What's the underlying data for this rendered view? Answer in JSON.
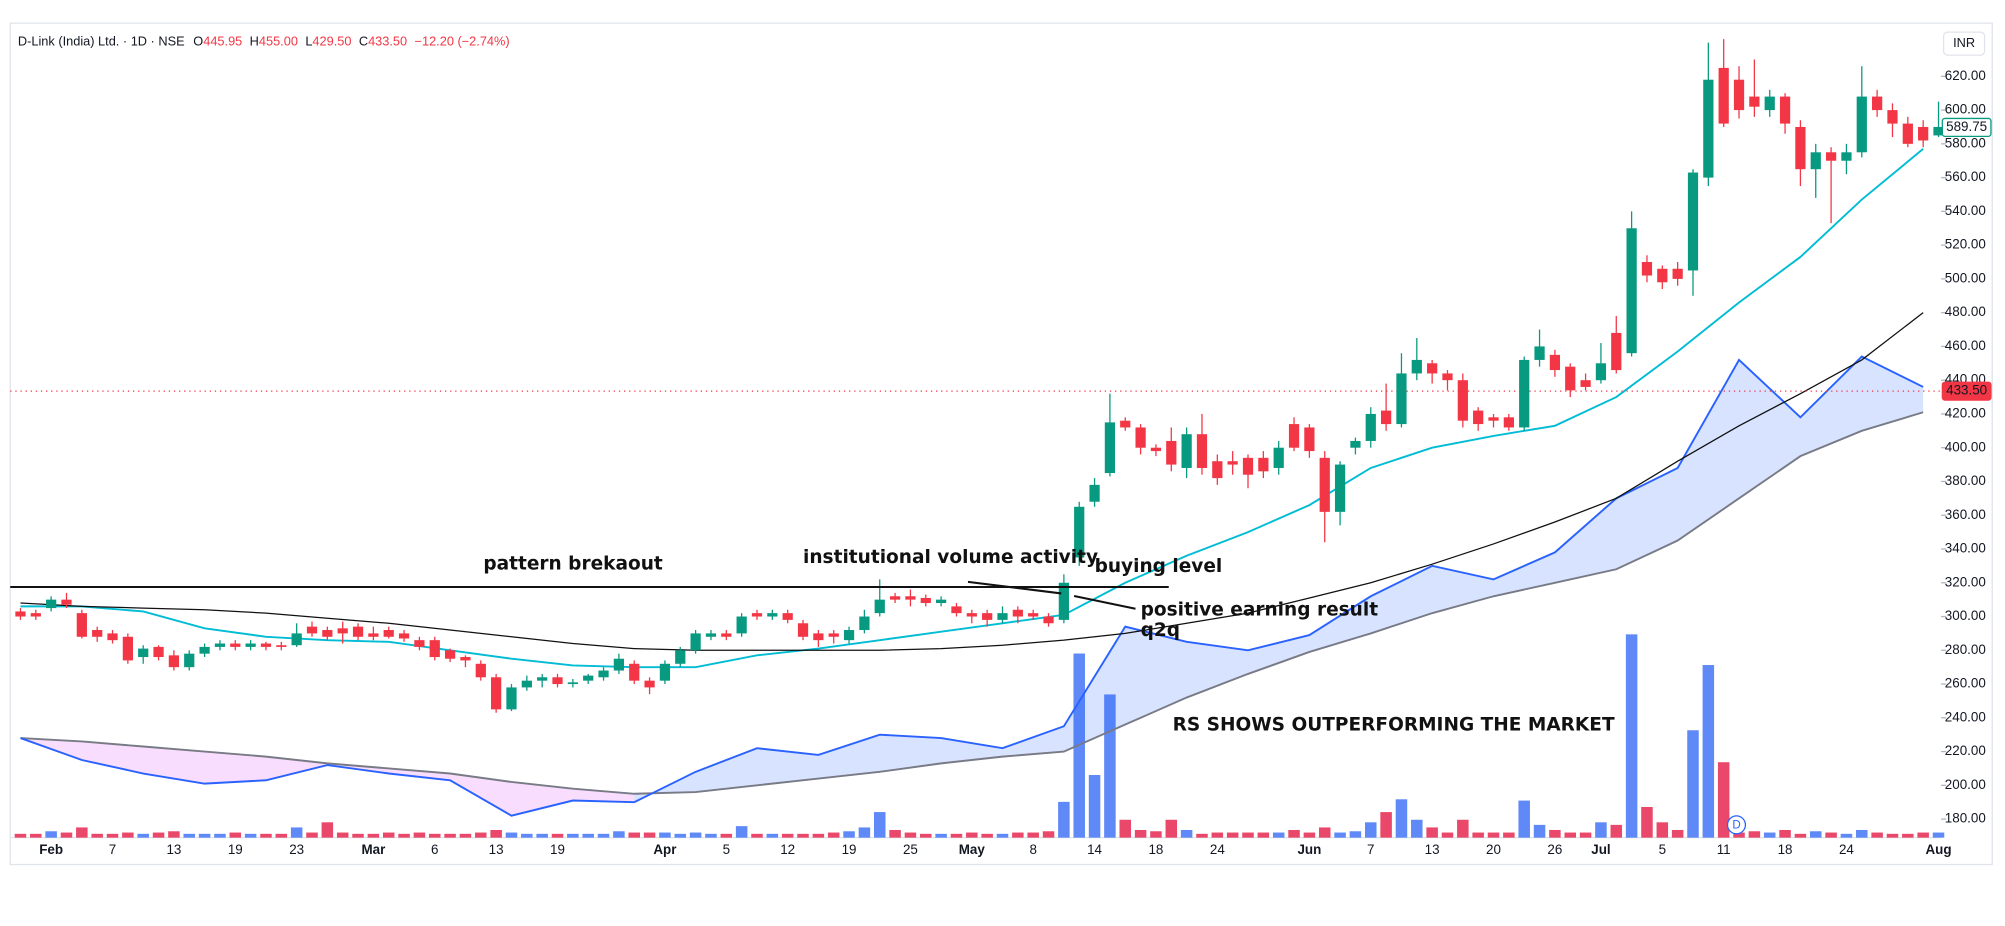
{
  "chart_data": {
    "type": "candlestick",
    "title": "D-Link (India) Ltd. · 1D · NSE",
    "ohlc_legend": [
      {
        "label": "O",
        "value": "445.95"
      },
      {
        "label": "H",
        "value": "455.00"
      },
      {
        "label": "L",
        "value": "429.50"
      },
      {
        "label": "C",
        "value": "433.50"
      }
    ],
    "change": "−12.20 (−2.74%)",
    "currency": "INR",
    "up_color": "#089981",
    "down_color": "#f23645",
    "volume_up_color": "#4d7cf5",
    "volume_down_color": "#e8345a",
    "categories": [
      null,
      null,
      "Feb",
      null,
      null,
      null,
      "7",
      null,
      null,
      null,
      "13",
      null,
      null,
      null,
      "19",
      null,
      null,
      null,
      "23",
      null,
      null,
      null,
      null,
      "Mar",
      null,
      null,
      null,
      "6",
      null,
      null,
      null,
      "13",
      null,
      null,
      null,
      "19",
      null,
      null,
      null,
      null,
      null,
      null,
      "Apr",
      null,
      null,
      null,
      "5",
      null,
      null,
      null,
      "12",
      null,
      null,
      null,
      "19",
      null,
      null,
      null,
      "25",
      null,
      null,
      null,
      "May",
      null,
      null,
      null,
      "8",
      null,
      null,
      null,
      "14",
      null,
      null,
      null,
      "18",
      null,
      null,
      null,
      "24",
      null,
      null,
      null,
      null,
      null,
      "Jun",
      null,
      null,
      null,
      "7",
      null,
      null,
      null,
      "13",
      null,
      null,
      null,
      "20",
      null,
      null,
      null,
      "26",
      null,
      null,
      "Jul",
      null,
      null,
      null,
      "5",
      null,
      null,
      null,
      "11",
      null,
      null,
      null,
      "18",
      null,
      null,
      null,
      "24",
      null,
      null,
      null,
      null,
      null,
      "Aug"
    ],
    "open": [
      303,
      302,
      305,
      310,
      302,
      292,
      290,
      288,
      276,
      282,
      277,
      270,
      278,
      282,
      284,
      282,
      284,
      283,
      283,
      294,
      292,
      293,
      294,
      290,
      292,
      290,
      286,
      286,
      280,
      276,
      272,
      264,
      245,
      258,
      262,
      264,
      260,
      262,
      264,
      268,
      272,
      262,
      262,
      272,
      280,
      288,
      290,
      290,
      302,
      300,
      302,
      296,
      290,
      290,
      286,
      292,
      302,
      312,
      312,
      311,
      308,
      306,
      302,
      302,
      298,
      304,
      302,
      300,
      298,
      335,
      368,
      385,
      416,
      412,
      400,
      404,
      388,
      408,
      392,
      392,
      394,
      394,
      388,
      414,
      412,
      394,
      362,
      400,
      404,
      422,
      414,
      444,
      450,
      444,
      440,
      422,
      418,
      418,
      412,
      452,
      455,
      448,
      440,
      440,
      468,
      456,
      510,
      506,
      506,
      505,
      560,
      625,
      618,
      608,
      600,
      608,
      590,
      565,
      575,
      570,
      575,
      608,
      600,
      592,
      590,
      585
    ],
    "high": [
      305,
      304,
      312,
      314,
      304,
      294,
      292,
      290,
      283,
      283,
      280,
      280,
      284,
      286,
      286,
      286,
      285,
      285,
      296,
      297,
      294,
      297,
      296,
      294,
      294,
      292,
      288,
      288,
      281,
      277,
      274,
      266,
      260,
      265,
      266,
      266,
      263,
      266,
      270,
      278,
      274,
      264,
      274,
      282,
      292,
      292,
      292,
      302,
      304,
      304,
      304,
      298,
      292,
      292,
      294,
      304,
      322,
      314,
      316,
      313,
      312,
      308,
      304,
      304,
      306,
      306,
      304,
      302,
      325,
      368,
      382,
      432,
      418,
      414,
      402,
      412,
      412,
      420,
      396,
      398,
      396,
      398,
      404,
      418,
      414,
      398,
      392,
      406,
      424,
      438,
      456,
      465,
      452,
      446,
      444,
      424,
      420,
      420,
      454,
      470,
      458,
      450,
      444,
      462,
      478,
      540,
      514,
      508,
      510,
      565,
      640,
      642,
      626,
      630,
      612,
      610,
      594,
      580,
      578,
      580,
      626,
      612,
      604,
      596,
      594,
      605
    ],
    "low": [
      298,
      298,
      303,
      305,
      287,
      285,
      284,
      272,
      272,
      274,
      268,
      268,
      276,
      280,
      280,
      280,
      280,
      280,
      282,
      288,
      286,
      284,
      286,
      286,
      287,
      285,
      280,
      274,
      273,
      270,
      262,
      243,
      244,
      256,
      258,
      258,
      258,
      260,
      262,
      266,
      260,
      254,
      260,
      270,
      278,
      286,
      286,
      288,
      298,
      298,
      296,
      286,
      282,
      284,
      284,
      290,
      300,
      308,
      306,
      306,
      306,
      300,
      296,
      294,
      296,
      296,
      298,
      294,
      296,
      330,
      365,
      383,
      410,
      396,
      395,
      386,
      382,
      384,
      378,
      384,
      376,
      382,
      384,
      398,
      394,
      344,
      354,
      396,
      400,
      410,
      412,
      440,
      438,
      434,
      412,
      410,
      412,
      410,
      410,
      448,
      442,
      430,
      434,
      438,
      444,
      454,
      498,
      494,
      496,
      490,
      555,
      590,
      595,
      596,
      596,
      586,
      555,
      548,
      533,
      562,
      572,
      596,
      584,
      578,
      578,
      584
    ],
    "close": [
      300,
      300,
      310,
      307,
      288,
      288,
      286,
      274,
      281,
      276,
      270,
      278,
      282,
      284,
      282,
      284,
      282,
      282,
      290,
      290,
      288,
      290,
      288,
      288,
      288,
      287,
      282,
      276,
      275,
      274,
      264,
      245,
      258,
      262,
      264,
      260,
      261,
      265,
      268,
      275,
      262,
      258,
      272,
      280,
      290,
      290,
      288,
      300,
      300,
      302,
      298,
      288,
      286,
      288,
      292,
      300,
      310,
      310,
      310,
      308,
      310,
      302,
      300,
      298,
      302,
      300,
      300,
      296,
      320,
      365,
      378,
      415,
      412,
      400,
      398,
      390,
      408,
      388,
      382,
      390,
      384,
      386,
      400,
      400,
      398,
      362,
      390,
      404,
      420,
      414,
      444,
      452,
      444,
      440,
      416,
      414,
      416,
      412,
      452,
      460,
      446,
      434,
      436,
      450,
      446,
      530,
      502,
      498,
      500,
      563,
      618,
      592,
      600,
      602,
      608,
      592,
      565,
      575,
      570,
      575,
      608,
      600,
      592,
      580,
      582,
      590
    ],
    "volume": [
      3,
      3,
      5,
      4,
      8,
      3,
      3,
      4,
      3,
      4,
      5,
      3,
      3,
      3,
      4,
      3,
      3,
      3,
      8,
      4,
      12,
      4,
      3,
      3,
      4,
      3,
      4,
      3,
      3,
      3,
      4,
      6,
      4,
      3,
      3,
      3,
      3,
      3,
      3,
      5,
      4,
      4,
      4,
      3,
      4,
      3,
      3,
      9,
      3,
      3,
      3,
      3,
      3,
      4,
      5,
      8,
      20,
      6,
      4,
      3,
      3,
      3,
      4,
      3,
      3,
      4,
      4,
      5,
      28,
      144,
      49,
      112,
      14,
      6,
      5,
      14,
      6,
      3,
      4,
      4,
      4,
      4,
      4,
      6,
      4,
      8,
      4,
      5,
      12,
      20,
      30,
      14,
      8,
      4,
      14,
      4,
      4,
      4,
      29,
      10,
      6,
      4,
      4,
      12,
      10,
      159,
      24,
      12,
      6,
      84,
      135,
      59,
      4,
      5,
      4,
      6,
      3,
      5,
      4,
      3,
      6,
      4,
      3,
      3,
      4,
      4
    ],
    "vlim": [
      0,
      170
    ],
    "ylim": [
      169,
      650
    ],
    "yticks": [
      {
        "value": 180,
        "label": "180.00"
      },
      {
        "value": 200,
        "label": "200.00"
      },
      {
        "value": 220,
        "label": "220.00"
      },
      {
        "value": 240,
        "label": "240.00"
      },
      {
        "value": 260,
        "label": "260.00"
      },
      {
        "value": 280,
        "label": "280.00"
      },
      {
        "value": 300,
        "label": "300.00"
      },
      {
        "value": 320,
        "label": "320.00"
      },
      {
        "value": 340,
        "label": "340.00"
      },
      {
        "value": 360,
        "label": "360.00"
      },
      {
        "value": 380,
        "label": "380.00"
      },
      {
        "value": 400,
        "label": "400.00"
      },
      {
        "value": 420,
        "label": "420.00"
      },
      {
        "value": 440,
        "label": "440.00"
      },
      {
        "value": 460,
        "label": "460.00"
      },
      {
        "value": 480,
        "label": "480.00"
      },
      {
        "value": 500,
        "label": "500.00"
      },
      {
        "value": 520,
        "label": "520.00"
      },
      {
        "value": 540,
        "label": "540.00"
      },
      {
        "value": 560,
        "label": "560.00"
      },
      {
        "value": 580,
        "label": "580.00"
      },
      {
        "value": 600,
        "label": "600.00"
      },
      {
        "value": 620,
        "label": "620.00"
      }
    ],
    "grid": false,
    "line_x": [
      0,
      4,
      8,
      12,
      16,
      20,
      24,
      28,
      32,
      36,
      40,
      44,
      48,
      52,
      56,
      60,
      64,
      68,
      72,
      76,
      80,
      84,
      88,
      92,
      96,
      100,
      104,
      108,
      112,
      116,
      120,
      124
    ],
    "lines": [
      {
        "color": "#00bcd4",
        "values": [
          306,
          306,
          303,
          293,
          288,
          286,
          285,
          280,
          275,
          271,
          270,
          270,
          277,
          281,
          286,
          291,
          296,
          301,
          320,
          336,
          350,
          366,
          388,
          400,
          407,
          413,
          430,
          457,
          486,
          513,
          547,
          577
        ]
      },
      {
        "color": "#111111",
        "values": [
          308,
          306,
          305,
          304,
          302,
          299,
          296,
          292,
          288,
          284,
          281,
          280,
          280,
          280,
          280,
          281,
          283,
          286,
          290,
          296,
          302,
          311,
          320,
          331,
          343,
          356,
          370,
          392,
          413,
          432,
          452,
          480
        ]
      }
    ],
    "rs": {
      "color": "#2962ff",
      "ma_color": "#787b86",
      "above_fill": "#2962ff",
      "below_fill": "#e040fb",
      "values": [
        228,
        215,
        207,
        201,
        203,
        212,
        207,
        203,
        182,
        191,
        190,
        208,
        222,
        218,
        230,
        228,
        222,
        235,
        294,
        285,
        280,
        289,
        312,
        330,
        322,
        338,
        370,
        388,
        452,
        418,
        454,
        436
      ],
      "ma": [
        228,
        226,
        223,
        220,
        217,
        213,
        210,
        207,
        202,
        198,
        195,
        196,
        200,
        204,
        208,
        213,
        217,
        220,
        236,
        252,
        266,
        279,
        290,
        302,
        312,
        320,
        328,
        345,
        370,
        395,
        410,
        421
      ]
    },
    "last_price": {
      "value": 433.5,
      "label": "433.50",
      "color": "#f23645"
    },
    "price_tag": {
      "value": 589.75,
      "label": "589.75",
      "color": "#089981"
    },
    "event_marker": "D",
    "annotations": [
      "pattern brekaout",
      "institutional volume activity",
      "buying level",
      "positive earning result",
      "q2q",
      "RS SHOWS OUTPERFORMING THE MARKET"
    ]
  }
}
